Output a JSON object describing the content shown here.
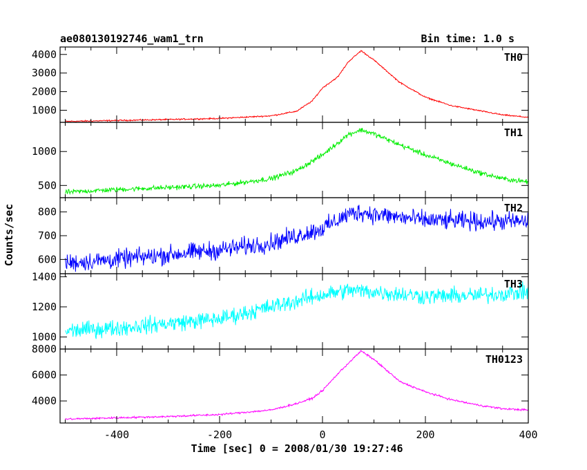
{
  "chart_data": {
    "type": "line",
    "title": "ae080130192746_wam1_trn",
    "bin_time_label": "Bin time: 1.0 s",
    "xlabel": "Time [sec] 0 = 2008/01/30 19:27:46",
    "ylabel": "Counts/sec",
    "xlim": [
      -510,
      400
    ],
    "x_ticks": [
      -400,
      -200,
      0,
      200,
      400
    ],
    "panels": [
      {
        "name": "TH0",
        "color": "#ff0000",
        "ylim": [
          350,
          4400
        ],
        "y_ticks": [
          1000,
          2000,
          3000,
          4000
        ],
        "profile": [
          [
            -500,
            400
          ],
          [
            -400,
            450
          ],
          [
            -300,
            500
          ],
          [
            -200,
            560
          ],
          [
            -100,
            700
          ],
          [
            -50,
            950
          ],
          [
            -20,
            1500
          ],
          [
            0,
            2200
          ],
          [
            30,
            2800
          ],
          [
            50,
            3600
          ],
          [
            75,
            4200
          ],
          [
            100,
            3700
          ],
          [
            150,
            2500
          ],
          [
            200,
            1700
          ],
          [
            250,
            1250
          ],
          [
            300,
            1000
          ],
          [
            350,
            750
          ],
          [
            400,
            620
          ]
        ],
        "noise": 30
      },
      {
        "name": "TH1",
        "color": "#00ee00",
        "ylim": [
          320,
          1430
        ],
        "y_ticks": [
          500,
          1000
        ],
        "profile": [
          [
            -500,
            400
          ],
          [
            -400,
            440
          ],
          [
            -300,
            470
          ],
          [
            -200,
            500
          ],
          [
            -100,
            600
          ],
          [
            -50,
            720
          ],
          [
            0,
            950
          ],
          [
            50,
            1250
          ],
          [
            75,
            1320
          ],
          [
            100,
            1260
          ],
          [
            150,
            1100
          ],
          [
            200,
            950
          ],
          [
            250,
            820
          ],
          [
            300,
            700
          ],
          [
            350,
            600
          ],
          [
            400,
            550
          ]
        ],
        "noise": 30
      },
      {
        "name": "TH2",
        "color": "#0000ff",
        "ylim": [
          540,
          860
        ],
        "y_ticks": [
          600,
          700,
          800
        ],
        "profile": [
          [
            -500,
            585
          ],
          [
            -400,
            600
          ],
          [
            -300,
            620
          ],
          [
            -200,
            640
          ],
          [
            -100,
            670
          ],
          [
            0,
            730
          ],
          [
            50,
            790
          ],
          [
            75,
            800
          ],
          [
            100,
            790
          ],
          [
            200,
            765
          ],
          [
            300,
            760
          ],
          [
            400,
            760
          ]
        ],
        "noise": 32
      },
      {
        "name": "TH3",
        "color": "#00ffff",
        "ylim": [
          920,
          1420
        ],
        "y_ticks": [
          1000,
          1200,
          1400
        ],
        "profile": [
          [
            -500,
            1040
          ],
          [
            -400,
            1060
          ],
          [
            -300,
            1090
          ],
          [
            -200,
            1120
          ],
          [
            -100,
            1200
          ],
          [
            0,
            1280
          ],
          [
            50,
            1310
          ],
          [
            100,
            1300
          ],
          [
            200,
            1270
          ],
          [
            300,
            1275
          ],
          [
            400,
            1300
          ]
        ],
        "noise": 45
      },
      {
        "name": "TH0123",
        "color": "#ff00ff",
        "ylim": [
          2300,
          8000
        ],
        "y_ticks": [
          4000,
          6000,
          8000
        ],
        "profile": [
          [
            -500,
            2600
          ],
          [
            -400,
            2700
          ],
          [
            -300,
            2800
          ],
          [
            -200,
            2950
          ],
          [
            -100,
            3300
          ],
          [
            -50,
            3800
          ],
          [
            -20,
            4200
          ],
          [
            0,
            4800
          ],
          [
            30,
            6100
          ],
          [
            50,
            6900
          ],
          [
            75,
            7850
          ],
          [
            100,
            7200
          ],
          [
            150,
            5500
          ],
          [
            200,
            4700
          ],
          [
            250,
            4100
          ],
          [
            300,
            3700
          ],
          [
            350,
            3400
          ],
          [
            400,
            3300
          ]
        ],
        "noise": 60
      }
    ]
  }
}
